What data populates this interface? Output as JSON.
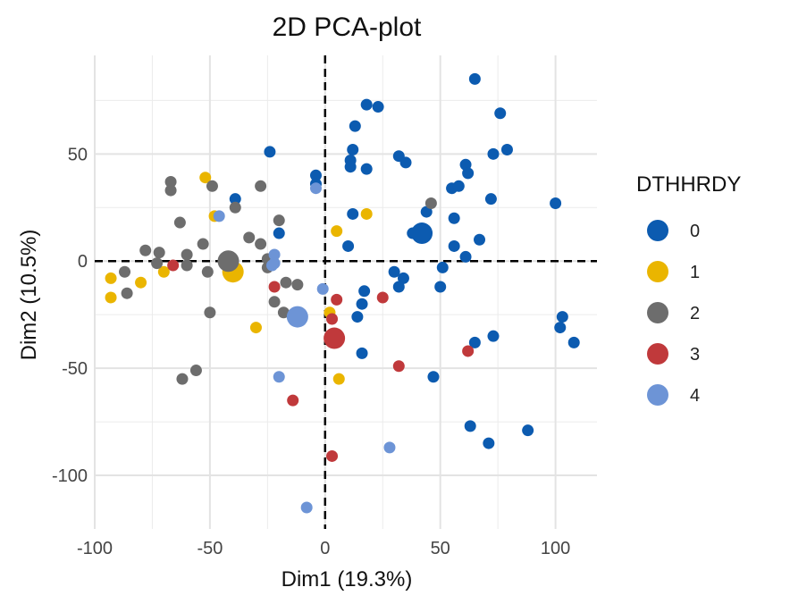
{
  "chart_data": {
    "type": "scatter",
    "title": "2D PCA-plot",
    "xlabel": "Dim1 (19.3%)",
    "ylabel": "Dim2 (10.5%)",
    "xlim": [
      -100,
      118
    ],
    "ylim": [
      -125,
      96
    ],
    "x_ticks": [
      -100,
      -50,
      0,
      50,
      100
    ],
    "x_tick_labels": [
      "-100",
      "-50",
      "0",
      "50",
      "100"
    ],
    "y_ticks": [
      -100,
      -50,
      0,
      50
    ],
    "y_tick_labels": [
      "-100",
      "-50",
      "0",
      "50"
    ],
    "grid": true,
    "reference_lines": {
      "x": 0,
      "y": 0,
      "style": "dashed"
    },
    "legend": {
      "title": "DTHHRDY",
      "position": "right"
    },
    "series": [
      {
        "name": "0",
        "color": "#0C5BB0",
        "centroid": [
          42,
          13
        ],
        "points": [
          [
            65,
            85
          ],
          [
            76,
            69
          ],
          [
            18,
            73
          ],
          [
            23,
            72
          ],
          [
            13,
            63
          ],
          [
            -24,
            51
          ],
          [
            12,
            52
          ],
          [
            32,
            49
          ],
          [
            35,
            46
          ],
          [
            61,
            45
          ],
          [
            62,
            41
          ],
          [
            11,
            47
          ],
          [
            11,
            44
          ],
          [
            18,
            43
          ],
          [
            73,
            50
          ],
          [
            79,
            52
          ],
          [
            -4,
            40
          ],
          [
            -4,
            36
          ],
          [
            55,
            34
          ],
          [
            58,
            35
          ],
          [
            72,
            29
          ],
          [
            100,
            27
          ],
          [
            -39,
            29
          ],
          [
            44,
            23
          ],
          [
            56,
            20
          ],
          [
            12,
            22
          ],
          [
            -20,
            13
          ],
          [
            38,
            13
          ],
          [
            67,
            10
          ],
          [
            56,
            7
          ],
          [
            10,
            7
          ],
          [
            61,
            2
          ],
          [
            51,
            -3
          ],
          [
            30,
            -5
          ],
          [
            34,
            -8
          ],
          [
            32,
            -12
          ],
          [
            50,
            -12
          ],
          [
            17,
            -14
          ],
          [
            16,
            -20
          ],
          [
            14,
            -26
          ],
          [
            103,
            -26
          ],
          [
            102,
            -31
          ],
          [
            108,
            -38
          ],
          [
            73,
            -35
          ],
          [
            65,
            -38
          ],
          [
            16,
            -43
          ],
          [
            47,
            -54
          ],
          [
            63,
            -77
          ],
          [
            71,
            -85
          ],
          [
            88,
            -79
          ]
        ]
      },
      {
        "name": "1",
        "color": "#EAB500",
        "centroid": [
          -40,
          -5
        ],
        "points": [
          [
            -52,
            39
          ],
          [
            -48,
            21
          ],
          [
            5,
            14
          ],
          [
            18,
            22
          ],
          [
            -93,
            -8
          ],
          [
            -80,
            -10
          ],
          [
            -93,
            -17
          ],
          [
            -70,
            -5
          ],
          [
            -30,
            -31
          ],
          [
            2,
            -24
          ],
          [
            6,
            -55
          ]
        ]
      },
      {
        "name": "2",
        "color": "#6D6D6D",
        "centroid": [
          -42,
          0
        ],
        "points": [
          [
            -67,
            37
          ],
          [
            -67,
            33
          ],
          [
            -49,
            35
          ],
          [
            -28,
            35
          ],
          [
            46,
            27
          ],
          [
            -39,
            25
          ],
          [
            -63,
            18
          ],
          [
            -20,
            19
          ],
          [
            -53,
            8
          ],
          [
            -33,
            11
          ],
          [
            -28,
            8
          ],
          [
            -78,
            5
          ],
          [
            -72,
            4
          ],
          [
            -60,
            3
          ],
          [
            -73,
            -1
          ],
          [
            -60,
            -2
          ],
          [
            -51,
            -5
          ],
          [
            -87,
            -5
          ],
          [
            -86,
            -15
          ],
          [
            -25,
            1
          ],
          [
            -25,
            -3
          ],
          [
            -17,
            -10
          ],
          [
            -12,
            -11
          ],
          [
            -22,
            -19
          ],
          [
            -18,
            -24
          ],
          [
            -50,
            -24
          ],
          [
            -56,
            -51
          ],
          [
            -62,
            -55
          ]
        ]
      },
      {
        "name": "3",
        "color": "#C0393B",
        "centroid": [
          4,
          -36
        ],
        "points": [
          [
            -66,
            -2
          ],
          [
            -22,
            -12
          ],
          [
            3,
            -27
          ],
          [
            5,
            -18
          ],
          [
            25,
            -17
          ],
          [
            62,
            -42
          ],
          [
            32,
            -49
          ],
          [
            -14,
            -65
          ],
          [
            3,
            -91
          ]
        ]
      },
      {
        "name": "4",
        "color": "#6D94D6",
        "centroid": [
          -12,
          -26
        ],
        "points": [
          [
            -46,
            21
          ],
          [
            -4,
            34
          ],
          [
            -22,
            3
          ],
          [
            -22,
            -1
          ],
          [
            -23,
            -2
          ],
          [
            -1,
            -13
          ],
          [
            -20,
            -54
          ],
          [
            28,
            -87
          ],
          [
            -8,
            -115
          ]
        ]
      }
    ]
  }
}
